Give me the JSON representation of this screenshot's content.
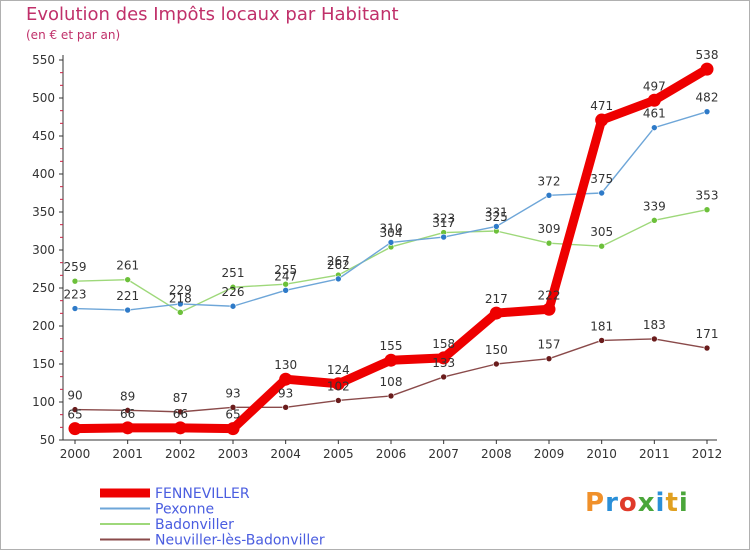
{
  "title": "Evolution des Impôts locaux par Habitant",
  "subtitle": "(en € et par an)",
  "logo": {
    "text": "Proxiti",
    "colors": [
      "#f0902a",
      "#2a8fd8",
      "#e03a2a",
      "#4aa63a",
      "#2a8fd8",
      "#e0a020",
      "#4aa63a"
    ]
  },
  "chart_data": {
    "type": "line",
    "title": "Evolution des Impôts locaux par Habitant",
    "subtitle": "(en € et par an)",
    "x": [
      "2000",
      "2001",
      "2002",
      "2003",
      "2004",
      "2005",
      "2006",
      "2007",
      "2008",
      "2009",
      "2010",
      "2011",
      "2012"
    ],
    "ylim": [
      50,
      550
    ],
    "yticks": [
      50,
      100,
      150,
      200,
      250,
      300,
      350,
      400,
      450,
      500,
      550
    ],
    "grid": false,
    "legend_position": "bottom-left",
    "series": [
      {
        "name": "FENNEVILLER",
        "color": "#ee0000",
        "values": [
          65,
          66,
          66,
          65,
          130,
          124,
          155,
          158,
          217,
          222,
          471,
          497,
          538
        ],
        "labels": [
          "65",
          "66",
          "66",
          "65",
          "130",
          "124",
          "155",
          "158",
          "217",
          "222",
          "471",
          "497",
          "538"
        ]
      },
      {
        "name": "Pexonne",
        "color": "#6ea6d8",
        "marker": "#2e7ac8",
        "values": [
          223,
          221,
          229,
          226,
          247,
          262,
          310,
          317,
          331,
          372,
          375,
          461,
          482
        ],
        "labels": [
          "223",
          "221",
          "229",
          "226",
          "247",
          "262",
          "310",
          "317",
          "331",
          "372",
          "375",
          "461",
          "482"
        ]
      },
      {
        "name": "Badonviller",
        "color": "#9ed87a",
        "marker": "#6cc03a",
        "values": [
          259,
          261,
          218,
          251,
          255,
          267,
          304,
          323,
          325,
          309,
          305,
          339,
          353
        ],
        "labels": [
          "259",
          "261",
          "218",
          "251",
          "255",
          "267",
          "304",
          "323",
          "325",
          "309",
          "305",
          "339",
          "353"
        ]
      },
      {
        "name": "Neuviller-lès-Badonviller",
        "color": "#8a4a4a",
        "marker": "#6a1c1c",
        "values": [
          90,
          89,
          87,
          93,
          93,
          102,
          108,
          133,
          150,
          157,
          181,
          183,
          171
        ],
        "labels": [
          "90",
          "89",
          "87",
          "93",
          "93",
          "102",
          "108",
          "133",
          "150",
          "157",
          "181",
          "183",
          "171"
        ]
      }
    ]
  }
}
